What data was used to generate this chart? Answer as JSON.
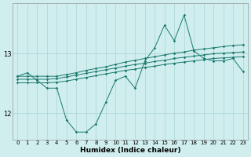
{
  "xlabel": "Humidex (Indice chaleur)",
  "bg_color": "#d0eeee",
  "grid_color": "#aad4d4",
  "line_color": "#1a7a6e",
  "x_ticks": [
    0,
    1,
    2,
    3,
    4,
    5,
    6,
    7,
    8,
    9,
    10,
    11,
    12,
    13,
    14,
    15,
    16,
    17,
    18,
    19,
    20,
    21,
    22,
    23
  ],
  "ylim": [
    11.55,
    13.85
  ],
  "xlim": [
    -0.5,
    23.5
  ],
  "line1_y": [
    12.62,
    12.68,
    12.55,
    12.42,
    12.42,
    11.88,
    11.68,
    11.68,
    11.82,
    12.18,
    12.55,
    12.62,
    12.42,
    12.88,
    13.1,
    13.48,
    13.22,
    13.65,
    13.05,
    12.92,
    12.88,
    12.88,
    12.92,
    12.7
  ],
  "line2_y": [
    12.62,
    12.62,
    12.62,
    12.62,
    12.62,
    12.65,
    12.68,
    12.72,
    12.75,
    12.78,
    12.82,
    12.86,
    12.89,
    12.92,
    12.95,
    12.98,
    13.01,
    13.03,
    13.06,
    13.08,
    13.1,
    13.12,
    13.14,
    13.15
  ],
  "line3_y": [
    12.57,
    12.57,
    12.57,
    12.57,
    12.58,
    12.61,
    12.64,
    12.67,
    12.7,
    12.73,
    12.76,
    12.79,
    12.82,
    12.84,
    12.87,
    12.89,
    12.92,
    12.94,
    12.96,
    12.98,
    13.0,
    13.01,
    13.02,
    13.03
  ],
  "line4_y": [
    12.51,
    12.51,
    12.51,
    12.51,
    12.52,
    12.54,
    12.57,
    12.6,
    12.63,
    12.66,
    12.69,
    12.72,
    12.74,
    12.77,
    12.79,
    12.82,
    12.84,
    12.86,
    12.88,
    12.9,
    12.92,
    12.93,
    12.94,
    12.95
  ],
  "yticks": [
    12,
    13
  ],
  "markersize": 1.8,
  "linewidth": 0.7,
  "xlabel_fontsize": 6.5,
  "tick_fontsize": 5.0
}
